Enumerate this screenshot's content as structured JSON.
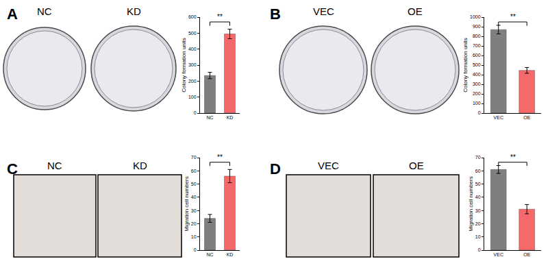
{
  "chart_data": [
    {
      "type": "bar",
      "panel": "A",
      "image_labels": [
        "NC",
        "KD"
      ],
      "categories": [
        "NC",
        "KD"
      ],
      "values": [
        235,
        495
      ],
      "errors": [
        20,
        30
      ],
      "colors": [
        "#7f7f7f",
        "#f5696b"
      ],
      "y_label": "Colony formation units",
      "ylim": [
        0,
        600
      ],
      "yticks": [
        0,
        100,
        200,
        300,
        400,
        500,
        600
      ],
      "significance": "**",
      "grid": false
    },
    {
      "type": "bar",
      "panel": "B",
      "image_labels": [
        "VEC",
        "OE"
      ],
      "categories": [
        "VEC",
        "OE"
      ],
      "values": [
        870,
        445
      ],
      "errors": [
        45,
        30
      ],
      "colors": [
        "#7f7f7f",
        "#f5696b"
      ],
      "y_label": "Colony formation units",
      "ylim": [
        0,
        1000
      ],
      "yticks": [
        0,
        100,
        200,
        300,
        400,
        500,
        600,
        700,
        800,
        900,
        1000
      ],
      "significance": "**",
      "grid": false
    },
    {
      "type": "bar",
      "panel": "C",
      "image_labels": [
        "NC",
        "KD"
      ],
      "categories": [
        "NC",
        "KD"
      ],
      "values": [
        24,
        56
      ],
      "errors": [
        3,
        5
      ],
      "colors": [
        "#7f7f7f",
        "#f5696b"
      ],
      "y_label": "Migration cell numbers",
      "ylim": [
        0,
        70
      ],
      "yticks": [
        0,
        10,
        20,
        30,
        40,
        50,
        60,
        70
      ],
      "significance": "**",
      "grid": false
    },
    {
      "type": "bar",
      "panel": "D",
      "image_labels": [
        "VEC",
        "OE"
      ],
      "categories": [
        "VEC",
        "OE"
      ],
      "values": [
        61,
        31
      ],
      "errors": [
        3,
        3.5
      ],
      "colors": [
        "#7f7f7f",
        "#f5696b"
      ],
      "y_label": "Migration cell numbers",
      "ylim": [
        0,
        70
      ],
      "yticks": [
        0,
        10,
        20,
        30,
        40,
        50,
        60,
        70
      ],
      "significance": "**",
      "grid": false
    }
  ]
}
